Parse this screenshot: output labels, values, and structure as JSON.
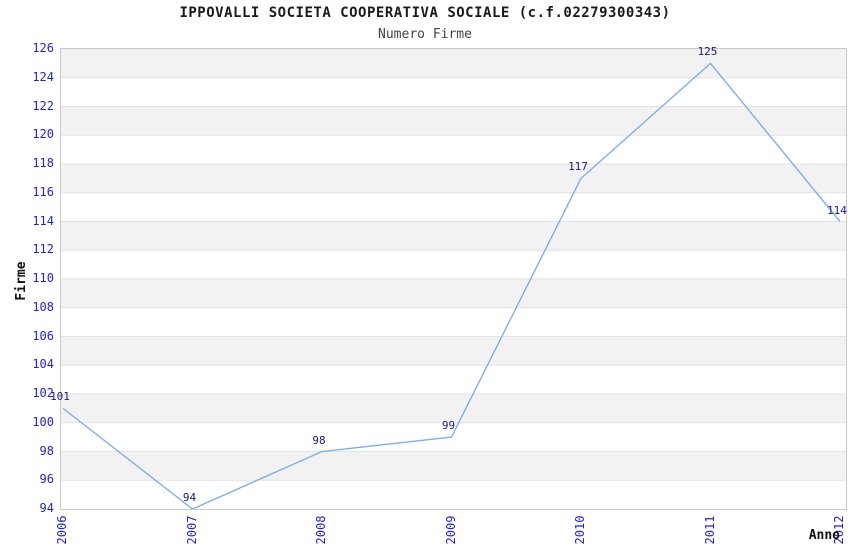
{
  "header": {
    "title": "IPPOVALLI SOCIETA COOPERATIVA SOCIALE (c.f.02279300343)",
    "subtitle": "Numero Firme"
  },
  "chart_data": {
    "type": "line",
    "title": "IPPOVALLI SOCIETA COOPERATIVA SOCIALE (c.f.02279300343)",
    "subtitle": "Numero Firme",
    "xlabel": "Anno",
    "ylabel": "Firme",
    "x": [
      "2006",
      "2007",
      "2008",
      "2009",
      "2010",
      "2011",
      "2012"
    ],
    "values": [
      101,
      94,
      98,
      99,
      117,
      125,
      114
    ],
    "point_labels": [
      "101",
      "94",
      "98",
      "99",
      "117",
      "125",
      "114"
    ],
    "ylim": [
      94,
      126
    ],
    "ytick_step": 2,
    "ytick_labels": [
      "126",
      "124",
      "122",
      "120",
      "118",
      "116",
      "114",
      "112",
      "110",
      "108",
      "106",
      "104",
      "102",
      "100",
      "98",
      "96",
      "94"
    ],
    "legend": "none",
    "grid": "horizontal-bands",
    "colors": {
      "line": "#82aee6",
      "tick_label": "#2424cc",
      "point_label": "#1a1a78",
      "band_gray": "#f2f2f2",
      "band_white": "#ffffff",
      "gridline": "#e2e2e2",
      "plot_border": "#c9c9c9",
      "title": "#1a1a1a",
      "subtitle": "#444444",
      "axis_title": "#111111"
    }
  }
}
